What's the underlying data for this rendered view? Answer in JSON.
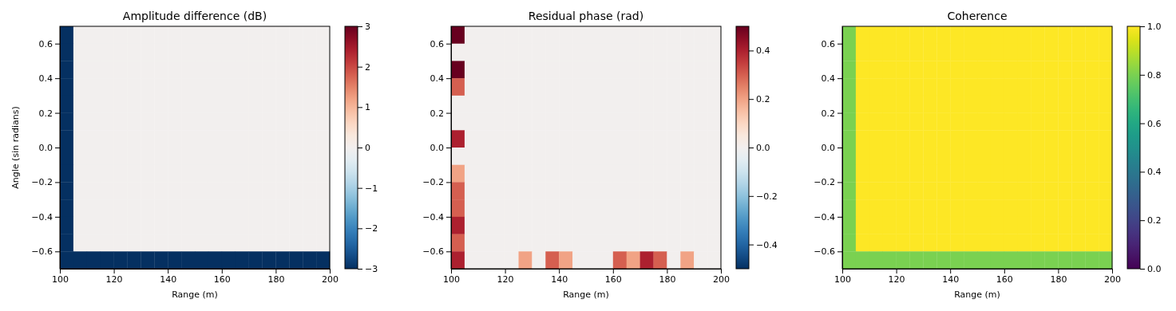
{
  "chart_data": [
    {
      "type": "heatmap",
      "title": "Amplitude difference (dB)",
      "xlabel": "Range (m)",
      "ylabel": "Angle (sin radians)",
      "x": [
        102.5,
        107.5,
        112.5,
        117.5,
        122.5,
        127.5,
        132.5,
        137.5,
        142.5,
        147.5,
        152.5,
        157.5,
        162.5,
        167.5,
        172.5,
        177.5,
        182.5,
        187.5,
        192.5,
        197.5
      ],
      "y": [
        0.65,
        0.55,
        0.45,
        0.35,
        0.25,
        0.15,
        0.05,
        -0.05,
        -0.15,
        -0.25,
        -0.35,
        -0.45,
        -0.55,
        -0.65
      ],
      "cells": [
        [
          -3,
          0,
          0,
          0,
          0,
          0,
          0,
          0,
          0,
          0,
          0,
          0,
          0,
          0,
          0,
          0,
          0,
          0,
          0,
          0
        ],
        [
          -3,
          0,
          0,
          0,
          0,
          0,
          0,
          0,
          0,
          0,
          0,
          0,
          0,
          0,
          0,
          0,
          0,
          0,
          0,
          0
        ],
        [
          -3,
          0,
          0,
          0,
          0,
          0,
          0,
          0,
          0,
          0,
          0,
          0,
          0,
          0,
          0,
          0,
          0,
          0,
          0,
          0
        ],
        [
          -3,
          0,
          0,
          0,
          0,
          0,
          0,
          0,
          0,
          0,
          0,
          0,
          0,
          0,
          0,
          0,
          0,
          0,
          0,
          0
        ],
        [
          -3,
          0,
          0,
          0,
          0,
          0,
          0,
          0,
          0,
          0,
          0,
          0,
          0,
          0,
          0,
          0,
          0,
          0,
          0,
          0
        ],
        [
          -3,
          0,
          0,
          0,
          0,
          0,
          0,
          0,
          0,
          0,
          0,
          0,
          0,
          0,
          0,
          0,
          0,
          0,
          0,
          0
        ],
        [
          -3,
          0,
          0,
          0,
          0,
          0,
          0,
          0,
          0,
          0,
          0,
          0,
          0,
          0,
          0,
          0,
          0,
          0,
          0,
          0
        ],
        [
          -3,
          0,
          0,
          0,
          0,
          0,
          0,
          0,
          0,
          0,
          0,
          0,
          0,
          0,
          0,
          0,
          0,
          0,
          0,
          0
        ],
        [
          -3,
          0,
          0,
          0,
          0,
          0,
          0,
          0,
          0,
          0,
          0,
          0,
          0,
          0,
          0,
          0,
          0,
          0,
          0,
          0
        ],
        [
          -3,
          0,
          0,
          0,
          0,
          0,
          0,
          0,
          0,
          0,
          0,
          0,
          0,
          0,
          0,
          0,
          0,
          0,
          0,
          0
        ],
        [
          -3,
          0,
          0,
          0,
          0,
          0,
          0,
          0,
          0,
          0,
          0,
          0,
          0,
          0,
          0,
          0,
          0,
          0,
          0,
          0
        ],
        [
          -3,
          0,
          0,
          0,
          0,
          0,
          0,
          0,
          0,
          0,
          0,
          0,
          0,
          0,
          0,
          0,
          0,
          0,
          0,
          0
        ],
        [
          -3,
          0,
          0,
          0,
          0,
          0,
          0,
          0,
          0,
          0,
          0,
          0,
          0,
          0,
          0,
          0,
          0,
          0,
          0,
          0
        ],
        [
          -3,
          -3,
          -3,
          -3,
          -3,
          -3,
          -3,
          -3,
          -3,
          -3,
          -3,
          -3,
          -3,
          -3,
          -3,
          -3,
          -3,
          -3,
          -3,
          -3
        ]
      ],
      "xlim": [
        100,
        200
      ],
      "ylim": [
        -0.7,
        0.7
      ],
      "xticks": [
        100,
        120,
        140,
        160,
        180,
        200
      ],
      "yticks": [
        {
          "value": -0.6,
          "label": "−0.6"
        },
        {
          "value": -0.4,
          "label": "−0.4"
        },
        {
          "value": -0.2,
          "label": "−0.2"
        },
        {
          "value": 0,
          "label": "0.0"
        },
        {
          "value": 0.2,
          "label": "0.2"
        },
        {
          "value": 0.4,
          "label": "0.4"
        },
        {
          "value": 0.6,
          "label": "0.6"
        }
      ],
      "clim": [
        -3,
        3
      ],
      "cticks": [
        {
          "value": -3,
          "label": "−3"
        },
        {
          "value": -2,
          "label": "−2"
        },
        {
          "value": -1,
          "label": "−1"
        },
        0,
        1,
        2,
        3
      ]
    },
    {
      "type": "heatmap",
      "title": "Residual phase (rad)",
      "xlabel": "Range (m)",
      "x": [
        102.5,
        107.5,
        112.5,
        117.5,
        122.5,
        127.5,
        132.5,
        137.5,
        142.5,
        147.5,
        152.5,
        157.5,
        162.5,
        167.5,
        172.5,
        177.5,
        182.5,
        187.5,
        192.5,
        197.5
      ],
      "y": [
        0.65,
        0.55,
        0.45,
        0.35,
        0.25,
        0.15,
        0.05,
        -0.05,
        -0.15,
        -0.25,
        -0.35,
        -0.45,
        -0.55,
        -0.65
      ],
      "cells": [
        [
          0.5,
          0,
          0,
          0,
          0,
          0,
          0,
          0,
          0,
          0,
          0,
          0,
          0,
          0,
          0,
          0,
          0,
          0,
          0,
          0
        ],
        [
          0,
          0,
          0,
          0,
          0,
          0,
          0,
          0,
          0,
          0,
          0,
          0,
          0,
          0,
          0,
          0,
          0,
          0,
          0,
          0
        ],
        [
          0.5,
          0,
          0,
          0,
          0,
          0,
          0,
          0,
          0,
          0,
          0,
          0,
          0,
          0,
          0,
          0,
          0,
          0,
          0,
          0
        ],
        [
          0.3,
          0,
          0,
          0,
          0,
          0,
          0,
          0,
          0,
          0,
          0,
          0,
          0,
          0,
          0,
          0,
          0,
          0,
          0,
          0
        ],
        [
          0,
          0,
          0,
          0,
          0,
          0,
          0,
          0,
          0,
          0,
          0,
          0,
          0,
          0,
          0,
          0,
          0,
          0,
          0,
          0
        ],
        [
          0,
          0,
          0,
          0,
          0,
          0,
          0,
          0,
          0,
          0,
          0,
          0,
          0,
          0,
          0,
          0,
          0,
          0,
          0,
          0
        ],
        [
          0.4,
          0,
          0,
          0,
          0,
          0,
          0,
          0,
          0,
          0,
          0,
          0,
          0,
          0,
          0,
          0,
          0,
          0,
          0,
          0
        ],
        [
          0,
          0,
          0,
          0,
          0,
          0,
          0,
          0,
          0,
          0,
          0,
          0,
          0,
          0,
          0,
          0,
          0,
          0,
          0,
          0
        ],
        [
          0.2,
          0,
          0,
          0,
          0,
          0,
          0,
          0,
          0,
          0,
          0,
          0,
          0,
          0,
          0,
          0,
          0,
          0,
          0,
          0
        ],
        [
          0.3,
          0,
          0,
          0,
          0,
          0,
          0,
          0,
          0,
          0,
          0,
          0,
          0,
          0,
          0,
          0,
          0,
          0,
          0,
          0
        ],
        [
          0.3,
          0,
          0,
          0,
          0,
          0,
          0,
          0,
          0,
          0,
          0,
          0,
          0,
          0,
          0,
          0,
          0,
          0,
          0,
          0
        ],
        [
          0.4,
          0,
          0,
          0,
          0,
          0,
          0,
          0,
          0,
          0,
          0,
          0,
          0,
          0,
          0,
          0,
          0,
          0,
          0,
          0
        ],
        [
          0.3,
          0,
          0,
          0,
          0,
          0,
          0,
          0,
          0,
          0,
          0,
          0,
          0,
          0,
          0,
          0,
          0,
          0,
          0,
          0
        ],
        [
          0.4,
          0,
          0,
          0,
          0,
          0.2,
          0,
          0.3,
          0.2,
          0,
          0,
          0,
          0.3,
          0.2,
          0.4,
          0.3,
          0,
          0.2,
          0,
          0
        ]
      ],
      "xlim": [
        100,
        200
      ],
      "ylim": [
        -0.7,
        0.7
      ],
      "xticks": [
        100,
        120,
        140,
        160,
        180,
        200
      ],
      "yticks": [
        {
          "value": -0.6,
          "label": "−0.6"
        },
        {
          "value": -0.4,
          "label": "−0.4"
        },
        {
          "value": -0.2,
          "label": "−0.2"
        },
        {
          "value": 0,
          "label": "0.0"
        },
        {
          "value": 0.2,
          "label": "0.2"
        },
        {
          "value": 0.4,
          "label": "0.4"
        },
        {
          "value": 0.6,
          "label": "0.6"
        }
      ],
      "clim": [
        -0.5,
        0.5
      ],
      "cticks": [
        {
          "value": -0.4,
          "label": "−0.4"
        },
        {
          "value": -0.2,
          "label": "−0.2"
        },
        {
          "value": 0,
          "label": "0.0"
        },
        0.2,
        0.4
      ]
    },
    {
      "type": "heatmap",
      "title": "Coherence",
      "xlabel": "Range (m)",
      "x": [
        102.5,
        107.5,
        112.5,
        117.5,
        122.5,
        127.5,
        132.5,
        137.5,
        142.5,
        147.5,
        152.5,
        157.5,
        162.5,
        167.5,
        172.5,
        177.5,
        182.5,
        187.5,
        192.5,
        197.5
      ],
      "y": [
        0.65,
        0.55,
        0.45,
        0.35,
        0.25,
        0.15,
        0.05,
        -0.05,
        -0.15,
        -0.25,
        -0.35,
        -0.45,
        -0.55,
        -0.65
      ],
      "cells": [
        [
          0.8,
          1,
          1,
          1,
          1,
          1,
          1,
          1,
          1,
          1,
          1,
          1,
          1,
          1,
          1,
          1,
          1,
          1,
          1,
          1
        ],
        [
          0.8,
          1,
          1,
          1,
          1,
          1,
          1,
          1,
          1,
          1,
          1,
          1,
          1,
          1,
          1,
          1,
          1,
          1,
          1,
          1
        ],
        [
          0.8,
          1,
          1,
          1,
          1,
          1,
          1,
          1,
          1,
          1,
          1,
          1,
          1,
          1,
          1,
          1,
          1,
          1,
          1,
          1
        ],
        [
          0.8,
          1,
          1,
          1,
          1,
          1,
          1,
          1,
          1,
          1,
          1,
          1,
          1,
          1,
          1,
          1,
          1,
          1,
          1,
          1
        ],
        [
          0.8,
          1,
          1,
          1,
          1,
          1,
          1,
          1,
          1,
          1,
          1,
          1,
          1,
          1,
          1,
          1,
          1,
          1,
          1,
          1
        ],
        [
          0.8,
          1,
          1,
          1,
          1,
          1,
          1,
          1,
          1,
          1,
          1,
          1,
          1,
          1,
          1,
          1,
          1,
          1,
          1,
          1
        ],
        [
          0.8,
          1,
          1,
          1,
          1,
          1,
          1,
          1,
          1,
          1,
          1,
          1,
          1,
          1,
          1,
          1,
          1,
          1,
          1,
          1
        ],
        [
          0.8,
          1,
          1,
          1,
          1,
          1,
          1,
          1,
          1,
          1,
          1,
          1,
          1,
          1,
          1,
          1,
          1,
          1,
          1,
          1
        ],
        [
          0.8,
          1,
          1,
          1,
          1,
          1,
          1,
          1,
          1,
          1,
          1,
          1,
          1,
          1,
          1,
          1,
          1,
          1,
          1,
          1
        ],
        [
          0.8,
          1,
          1,
          1,
          1,
          1,
          1,
          1,
          1,
          1,
          1,
          1,
          1,
          1,
          1,
          1,
          1,
          1,
          1,
          1
        ],
        [
          0.8,
          1,
          1,
          1,
          1,
          1,
          1,
          1,
          1,
          1,
          1,
          1,
          1,
          1,
          1,
          1,
          1,
          1,
          1,
          1
        ],
        [
          0.8,
          1,
          1,
          1,
          1,
          1,
          1,
          1,
          1,
          1,
          1,
          1,
          1,
          1,
          1,
          1,
          1,
          1,
          1,
          1
        ],
        [
          0.8,
          1,
          1,
          1,
          1,
          1,
          1,
          1,
          1,
          1,
          1,
          1,
          1,
          1,
          1,
          1,
          1,
          1,
          1,
          1
        ],
        [
          0.8,
          0.8,
          0.8,
          0.8,
          0.8,
          0.8,
          0.8,
          0.8,
          0.8,
          0.8,
          0.8,
          0.8,
          0.8,
          0.8,
          0.8,
          0.8,
          0.8,
          0.8,
          0.8,
          0.8
        ]
      ],
      "xlim": [
        100,
        200
      ],
      "ylim": [
        -0.7,
        0.7
      ],
      "xticks": [
        100,
        120,
        140,
        160,
        180,
        200
      ],
      "yticks": [
        {
          "value": -0.6,
          "label": "−0.6"
        },
        {
          "value": -0.4,
          "label": "−0.4"
        },
        {
          "value": -0.2,
          "label": "−0.2"
        },
        {
          "value": 0,
          "label": "0.0"
        },
        {
          "value": 0.2,
          "label": "0.2"
        },
        {
          "value": 0.4,
          "label": "0.4"
        },
        {
          "value": 0.6,
          "label": "0.6"
        }
      ],
      "clim": [
        0,
        1
      ],
      "cticks": [
        {
          "value": 0,
          "label": "0.0"
        },
        0.2,
        0.4,
        0.6,
        0.8,
        {
          "value": 1,
          "label": "1.0"
        }
      ]
    }
  ]
}
